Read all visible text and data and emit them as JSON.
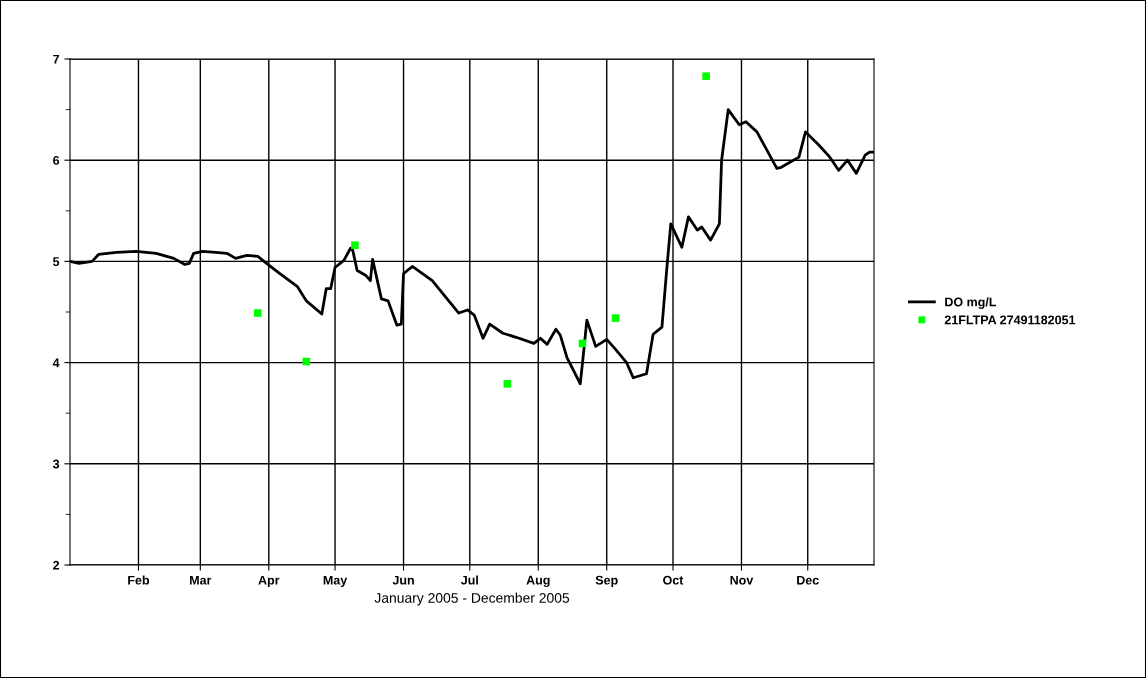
{
  "chart_data": {
    "type": "line",
    "xlabel": "January 2005 - December 2005",
    "xlim": [
      "2005-01-01",
      "2005-12-31"
    ],
    "xticks": [
      {
        "value": "2005-02-01",
        "label": "Feb"
      },
      {
        "value": "2005-03-01",
        "label": "Mar"
      },
      {
        "value": "2005-04-01",
        "label": "Apr"
      },
      {
        "value": "2005-05-01",
        "label": "May"
      },
      {
        "value": "2005-06-01",
        "label": "Jun"
      },
      {
        "value": "2005-07-01",
        "label": "Jul"
      },
      {
        "value": "2005-08-01",
        "label": "Aug"
      },
      {
        "value": "2005-09-01",
        "label": "Sep"
      },
      {
        "value": "2005-10-01",
        "label": "Oct"
      },
      {
        "value": "2005-11-01",
        "label": "Nov"
      },
      {
        "value": "2005-12-01",
        "label": "Dec"
      }
    ],
    "ylim": [
      2,
      7
    ],
    "yticks": [
      2,
      {
        "value": 2.5,
        "label": null
      },
      3,
      {
        "value": 3.5,
        "label": null
      },
      4,
      {
        "value": 4.5,
        "label": null
      },
      5,
      {
        "value": 5.5,
        "label": null
      },
      6,
      {
        "value": 6.5,
        "label": null
      },
      7
    ],
    "grid": true,
    "legend": "right",
    "series": [
      {
        "name": "DO mg/L",
        "color": "#000000",
        "marker": "none",
        "line_style": "solid",
        "x": [
          "2005-01-01",
          "2005-01-05",
          "2005-01-11",
          "2005-01-14",
          "2005-01-22",
          "2005-01-31",
          "2005-02-09",
          "2005-02-17",
          "2005-02-22",
          "2005-02-24",
          "2005-02-26",
          "2005-03-02",
          "2005-03-08",
          "2005-03-13",
          "2005-03-17",
          "2005-03-22",
          "2005-03-27",
          "2005-03-31",
          "2005-04-06",
          "2005-04-14",
          "2005-04-18",
          "2005-04-25",
          "2005-04-27",
          "2005-04-29",
          "2005-05-01",
          "2005-05-05",
          "2005-05-08",
          "2005-05-09",
          "2005-05-11",
          "2005-05-15",
          "2005-05-17",
          "2005-05-18",
          "2005-05-22",
          "2005-05-25",
          "2005-05-29",
          "2005-05-31",
          "2005-06-01",
          "2005-06-05",
          "2005-06-14",
          "2005-06-20",
          "2005-06-26",
          "2005-06-30",
          "2005-07-03",
          "2005-07-07",
          "2005-07-10",
          "2005-07-16",
          "2005-07-22",
          "2005-07-30",
          "2005-08-02",
          "2005-08-05",
          "2005-08-09",
          "2005-08-11",
          "2005-08-14",
          "2005-08-17",
          "2005-08-20",
          "2005-08-21",
          "2005-08-23",
          "2005-08-27",
          "2005-09-01",
          "2005-09-05",
          "2005-09-10",
          "2005-09-13",
          "2005-09-19",
          "2005-09-22",
          "2005-09-26",
          "2005-09-28",
          "2005-09-30",
          "2005-10-05",
          "2005-10-08",
          "2005-10-12",
          "2005-10-14",
          "2005-10-18",
          "2005-10-22",
          "2005-10-23",
          "2005-10-26",
          "2005-10-31",
          "2005-11-03",
          "2005-11-08",
          "2005-11-17",
          "2005-11-19",
          "2005-11-27",
          "2005-11-30",
          "2005-12-06",
          "2005-12-11",
          "2005-12-15",
          "2005-12-19",
          "2005-12-23",
          "2005-12-27",
          "2005-12-29",
          "2005-12-31"
        ],
        "values": [
          5.0,
          4.98,
          5.0,
          5.07,
          5.09,
          5.1,
          5.08,
          5.03,
          4.97,
          4.98,
          5.08,
          5.1,
          5.09,
          5.08,
          5.03,
          5.06,
          5.05,
          4.98,
          4.88,
          4.75,
          4.61,
          4.48,
          4.73,
          4.73,
          4.94,
          5.01,
          5.13,
          5.11,
          4.91,
          4.86,
          4.81,
          5.02,
          4.63,
          4.61,
          4.37,
          4.38,
          4.88,
          4.95,
          4.81,
          4.65,
          4.49,
          4.52,
          4.47,
          4.24,
          4.38,
          4.29,
          4.25,
          4.19,
          4.24,
          4.18,
          4.33,
          4.27,
          4.05,
          3.92,
          3.79,
          3.99,
          4.42,
          4.16,
          4.23,
          4.13,
          4.0,
          3.85,
          3.89,
          4.28,
          4.35,
          4.88,
          5.37,
          5.14,
          5.44,
          5.31,
          5.34,
          5.21,
          5.37,
          6.0,
          6.5,
          6.35,
          6.38,
          6.28,
          5.92,
          5.93,
          6.03,
          6.28,
          6.15,
          6.03,
          5.9,
          6.0,
          5.87,
          6.05,
          6.08,
          6.08
        ]
      },
      {
        "name": "21FLTPA 27491182051",
        "type": "scatter",
        "color": "#00ff00",
        "marker": "square",
        "x": [
          "2005-03-27",
          "2005-04-18",
          "2005-05-10",
          "2005-07-18",
          "2005-08-21",
          "2005-09-05",
          "2005-10-16"
        ],
        "values": [
          4.49,
          4.01,
          5.16,
          3.79,
          4.19,
          4.44,
          6.83
        ]
      }
    ]
  }
}
